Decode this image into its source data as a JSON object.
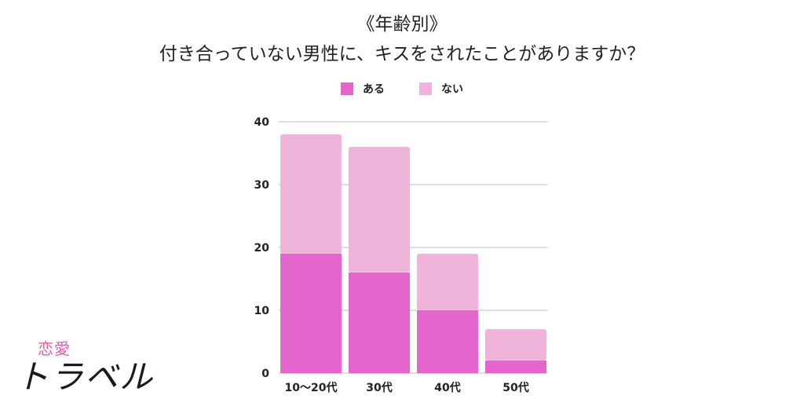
{
  "header": {
    "title_line1": "《年齢別》",
    "title_line2": "付き合っていない男性に、キスをされたことがありますか？"
  },
  "brand": {
    "small": "恋愛",
    "main": "トラベル"
  },
  "colors": {
    "aru": "#e466cc",
    "nai": "#f0b3da",
    "grid": "#bbbbbb",
    "text": "#222222"
  },
  "chart_data": {
    "type": "bar",
    "stacked": true,
    "categories": [
      "10～20代",
      "30代",
      "40代",
      "50代"
    ],
    "series": [
      {
        "name": "ある",
        "values": [
          19,
          16,
          10,
          2
        ]
      },
      {
        "name": "ない",
        "values": [
          19,
          20,
          9,
          5
        ]
      }
    ],
    "yticks": [
      "0",
      "10",
      "20",
      "30",
      "40"
    ],
    "ylim": [
      0,
      40
    ],
    "grid": true,
    "legend": "top-center"
  }
}
